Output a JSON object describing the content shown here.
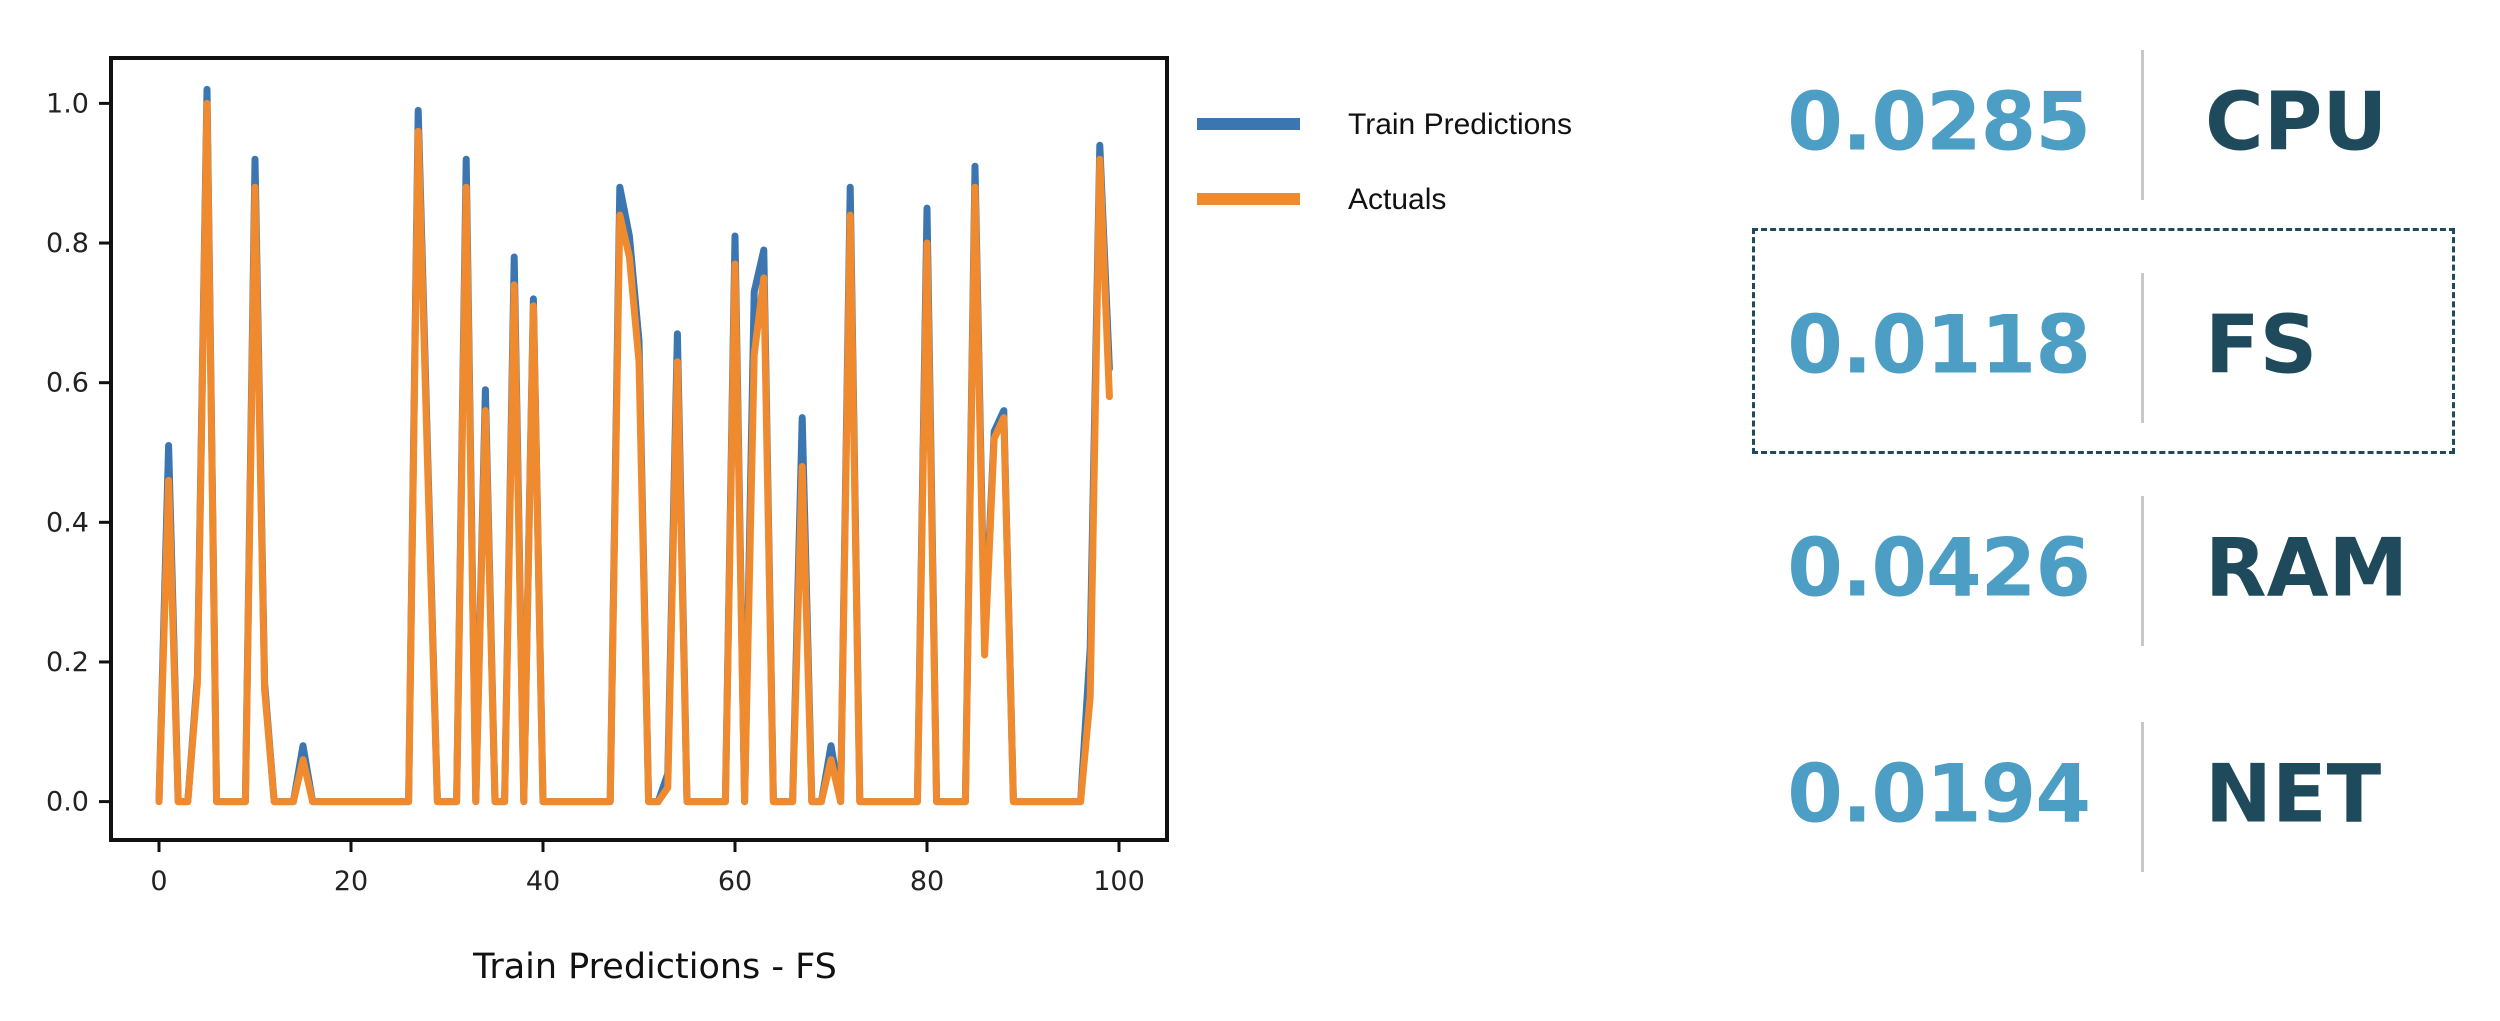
{
  "chart_data": {
    "type": "line",
    "title": "",
    "xlabel": "Train Predictions - FS",
    "ylabel": "",
    "xlim": [
      -5,
      105
    ],
    "ylim": [
      -0.055,
      1.065
    ],
    "xticks": [
      0,
      20,
      40,
      60,
      80,
      100
    ],
    "xtick_labels": [
      "0",
      "20",
      "40",
      "60",
      "80",
      "100"
    ],
    "yticks": [
      0.0,
      0.2,
      0.4,
      0.6,
      0.8,
      1.0
    ],
    "ytick_labels": [
      "0.0",
      "0.2",
      "0.4",
      "0.6",
      "0.8",
      "1.0"
    ],
    "grid": false,
    "legend_position": "outside-right-top",
    "series": [
      {
        "name": "Train Predictions",
        "color": "#3b76b0",
        "x": [
          0,
          1,
          2,
          3,
          4,
          5,
          6,
          7,
          8,
          9,
          10,
          11,
          12,
          13,
          14,
          15,
          16,
          17,
          18,
          19,
          20,
          21,
          22,
          23,
          24,
          25,
          26,
          27,
          28,
          29,
          30,
          31,
          32,
          33,
          34,
          35,
          36,
          37,
          38,
          39,
          40,
          41,
          42,
          43,
          44,
          45,
          46,
          47,
          48,
          49,
          50,
          51,
          52,
          53,
          54,
          55,
          56,
          57,
          58,
          59,
          60,
          61,
          62,
          63,
          64,
          65,
          66,
          67,
          68,
          69,
          70,
          71,
          72,
          73,
          74,
          75,
          76,
          77,
          78,
          79,
          80,
          81,
          82,
          83,
          84,
          85,
          86,
          87,
          88,
          89,
          90,
          91,
          92,
          93,
          94,
          95,
          96,
          97,
          98,
          99
        ],
        "y": [
          0.0,
          0.51,
          0.0,
          0.0,
          0.18,
          1.02,
          0.0,
          0.0,
          0.0,
          0.0,
          0.92,
          0.17,
          0.0,
          0.0,
          0.0,
          0.08,
          0.0,
          0.0,
          0.0,
          0.0,
          0.0,
          0.0,
          0.0,
          0.0,
          0.0,
          0.0,
          0.0,
          0.99,
          0.49,
          0.0,
          0.0,
          0.0,
          0.92,
          0.0,
          0.59,
          0.0,
          0.0,
          0.78,
          0.0,
          0.72,
          0.0,
          0.0,
          0.0,
          0.0,
          0.0,
          0.0,
          0.0,
          0.0,
          0.88,
          0.81,
          0.66,
          0.0,
          0.0,
          0.04,
          0.67,
          0.0,
          0.0,
          0.0,
          0.0,
          0.0,
          0.81,
          0.0,
          0.73,
          0.79,
          0.0,
          0.0,
          0.0,
          0.55,
          0.0,
          0.0,
          0.08,
          0.0,
          0.88,
          0.0,
          0.0,
          0.0,
          0.0,
          0.0,
          0.0,
          0.0,
          0.85,
          0.0,
          0.0,
          0.0,
          0.0,
          0.91,
          0.23,
          0.53,
          0.56,
          0.0,
          0.0,
          0.0,
          0.0,
          0.0,
          0.0,
          0.0,
          0.0,
          0.22,
          0.94,
          0.62
        ]
      },
      {
        "name": "Actuals",
        "color": "#ef8a2f",
        "x": [
          0,
          1,
          2,
          3,
          4,
          5,
          6,
          7,
          8,
          9,
          10,
          11,
          12,
          13,
          14,
          15,
          16,
          17,
          18,
          19,
          20,
          21,
          22,
          23,
          24,
          25,
          26,
          27,
          28,
          29,
          30,
          31,
          32,
          33,
          34,
          35,
          36,
          37,
          38,
          39,
          40,
          41,
          42,
          43,
          44,
          45,
          46,
          47,
          48,
          49,
          50,
          51,
          52,
          53,
          54,
          55,
          56,
          57,
          58,
          59,
          60,
          61,
          62,
          63,
          64,
          65,
          66,
          67,
          68,
          69,
          70,
          71,
          72,
          73,
          74,
          75,
          76,
          77,
          78,
          79,
          80,
          81,
          82,
          83,
          84,
          85,
          86,
          87,
          88,
          89,
          90,
          91,
          92,
          93,
          94,
          95,
          96,
          97,
          98,
          99
        ],
        "y": [
          0.0,
          0.46,
          0.0,
          0.0,
          0.17,
          1.0,
          0.0,
          0.0,
          0.0,
          0.0,
          0.88,
          0.16,
          0.0,
          0.0,
          0.0,
          0.06,
          0.0,
          0.0,
          0.0,
          0.0,
          0.0,
          0.0,
          0.0,
          0.0,
          0.0,
          0.0,
          0.0,
          0.96,
          0.47,
          0.0,
          0.0,
          0.0,
          0.88,
          0.0,
          0.56,
          0.0,
          0.0,
          0.74,
          0.0,
          0.71,
          0.0,
          0.0,
          0.0,
          0.0,
          0.0,
          0.0,
          0.0,
          0.0,
          0.84,
          0.78,
          0.63,
          0.0,
          0.0,
          0.02,
          0.63,
          0.0,
          0.0,
          0.0,
          0.0,
          0.0,
          0.77,
          0.0,
          0.64,
          0.75,
          0.0,
          0.0,
          0.0,
          0.48,
          0.0,
          0.0,
          0.06,
          0.0,
          0.84,
          0.0,
          0.0,
          0.0,
          0.0,
          0.0,
          0.0,
          0.0,
          0.8,
          0.0,
          0.0,
          0.0,
          0.0,
          0.88,
          0.21,
          0.52,
          0.55,
          0.0,
          0.0,
          0.0,
          0.0,
          0.0,
          0.0,
          0.0,
          0.0,
          0.15,
          0.92,
          0.58
        ]
      }
    ]
  },
  "metrics": [
    {
      "value": "0.0285",
      "name": "CPU",
      "highlighted": false
    },
    {
      "value": "0.0118",
      "name": "FS",
      "highlighted": true
    },
    {
      "value": "0.0426",
      "name": "RAM",
      "highlighted": false
    },
    {
      "value": "0.0194",
      "name": "NET",
      "highlighted": false
    }
  ],
  "colors": {
    "metric_value": "#4d9ec4",
    "metric_name": "#1f4a5c",
    "divider": "#c8c8c8",
    "highlight_border": "#1f4a5c"
  }
}
